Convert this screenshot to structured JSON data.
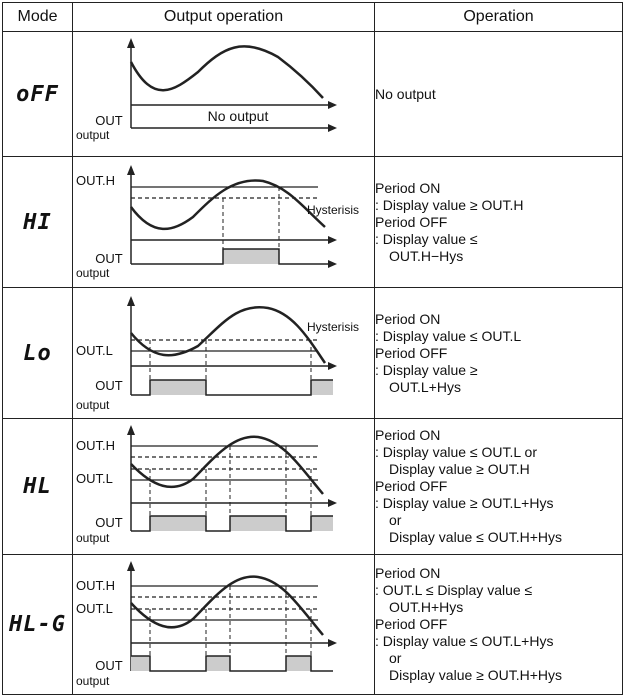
{
  "headers": {
    "mode": "Mode",
    "output": "Output operation",
    "operation": "Operation"
  },
  "labels": {
    "out": "OUT",
    "output": "output",
    "no_output": "No output",
    "out_h": "OUT.H",
    "out_l": "OUT.L",
    "hysteresis": "Hysterisis"
  },
  "rows": [
    {
      "mode": "oFF",
      "lines": [
        "No output"
      ]
    },
    {
      "mode": "HI",
      "lines": [
        "Period ON",
        ": Display value ≥ OUT.H",
        "Period OFF",
        ": Display value ≤",
        "OUT.H−Hys"
      ]
    },
    {
      "mode": "Lo",
      "lines": [
        "Period ON",
        ": Display value ≤ OUT.L",
        "Period OFF",
        ": Display value ≥",
        "OUT.L+Hys"
      ]
    },
    {
      "mode": "HL",
      "lines": [
        "Period ON",
        ": Display value ≤ OUT.L or",
        "Display value ≥ OUT.H",
        "Period OFF",
        ": Display value ≥ OUT.L+Hys",
        "or",
        "Display value ≤ OUT.H+Hys"
      ]
    },
    {
      "mode": "HL-G",
      "lines": [
        "Period ON",
        ": OUT.L ≤ Display value ≤",
        "OUT.H+Hys",
        "Period OFF",
        ": Display value ≤ OUT.L+Hys",
        "or",
        "Display value ≥ OUT.H+Hys"
      ]
    }
  ],
  "colors": {
    "output_fill": "#cccccc",
    "line": "#222222"
  }
}
